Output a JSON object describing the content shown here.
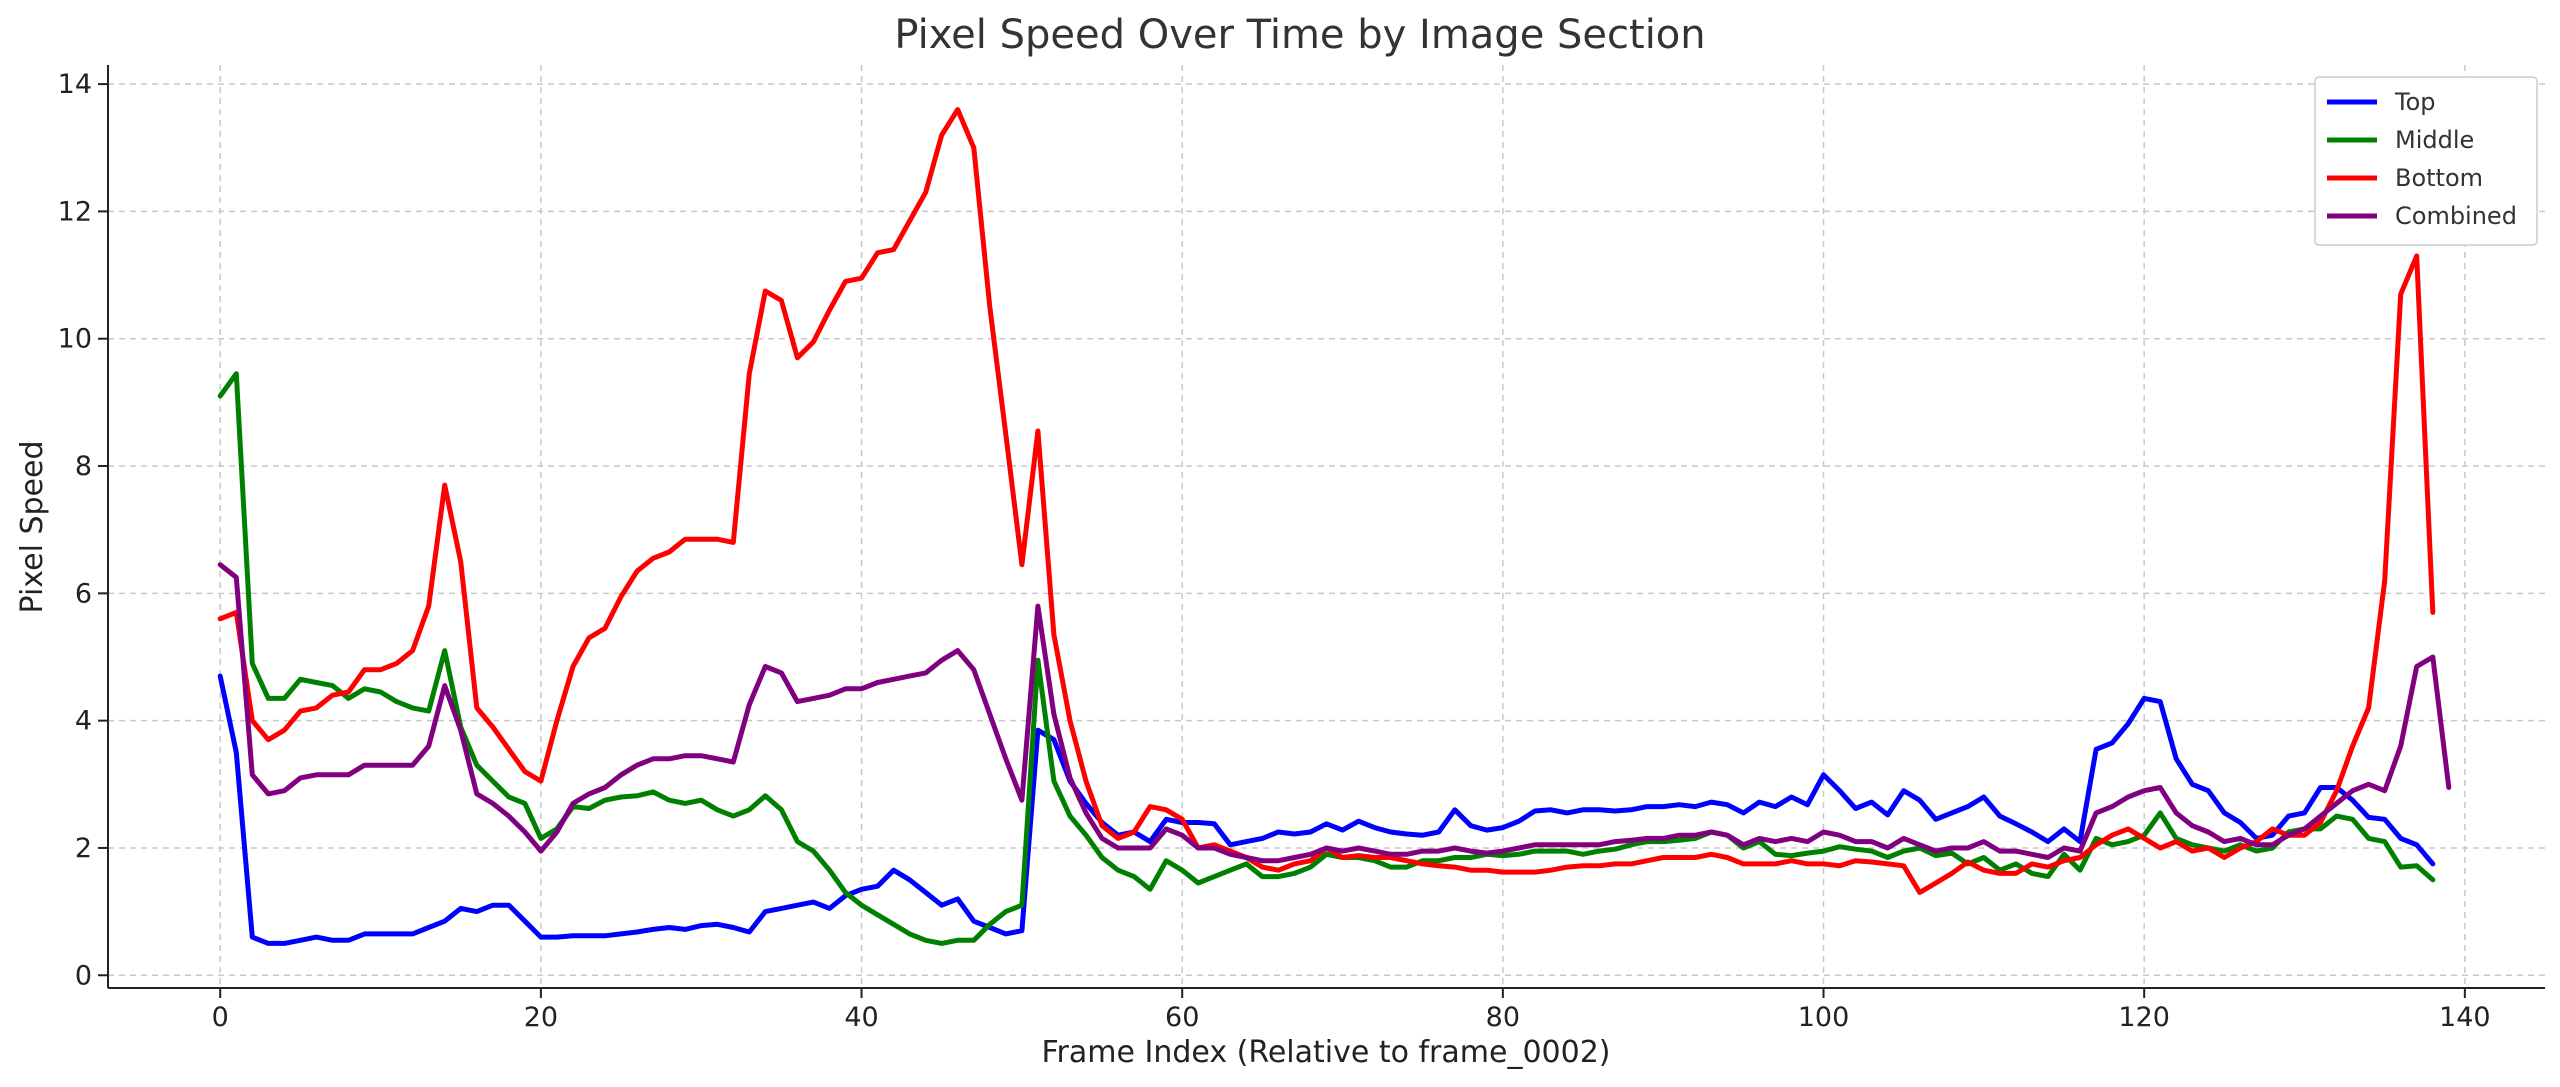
{
  "chart_data": {
    "type": "line",
    "title": "Pixel Speed Over Time by Image Section",
    "xlabel": "Frame Index (Relative to frame_0002)",
    "ylabel": "Pixel Speed",
    "xlim": [
      -7,
      145
    ],
    "ylim": [
      -0.2,
      14.3
    ],
    "xticks": [
      0,
      20,
      40,
      60,
      80,
      100,
      120,
      140
    ],
    "yticks": [
      0,
      2,
      4,
      6,
      8,
      10,
      12,
      14
    ],
    "grid": true,
    "legend_position": "top-right",
    "series": [
      {
        "name": "Top",
        "color": "#0000ff",
        "values": [
          4.7,
          3.5,
          0.6,
          0.5,
          0.5,
          0.55,
          0.6,
          0.55,
          0.55,
          0.65,
          0.65,
          0.65,
          0.65,
          0.75,
          0.85,
          1.05,
          1.0,
          1.1,
          1.1,
          0.85,
          0.6,
          0.6,
          0.62,
          0.62,
          0.62,
          0.65,
          0.68,
          0.72,
          0.75,
          0.72,
          0.78,
          0.8,
          0.75,
          0.68,
          1.0,
          1.05,
          1.1,
          1.15,
          1.05,
          1.25,
          1.35,
          1.4,
          1.65,
          1.5,
          1.3,
          1.1,
          1.2,
          0.85,
          0.75,
          0.65,
          0.7,
          3.85,
          3.7,
          3.05,
          2.7,
          2.4,
          2.2,
          2.25,
          2.1,
          2.45,
          2.4,
          2.4,
          2.38,
          2.05,
          2.1,
          2.15,
          2.25,
          2.22,
          2.25,
          2.38,
          2.28,
          2.42,
          2.32,
          2.25,
          2.22,
          2.2,
          2.25,
          2.6,
          2.35,
          2.28,
          2.32,
          2.42,
          2.58,
          2.6,
          2.55,
          2.6,
          2.6,
          2.58,
          2.6,
          2.65,
          2.65,
          2.68,
          2.65,
          2.72,
          2.68,
          2.55,
          2.72,
          2.65,
          2.8,
          2.68,
          3.15,
          2.9,
          2.62,
          2.72,
          2.52,
          2.9,
          2.75,
          2.45,
          2.55,
          2.65,
          2.8,
          2.5,
          2.38,
          2.25,
          2.1,
          2.3,
          2.1,
          3.55,
          3.65,
          3.95,
          4.35,
          4.3,
          3.4,
          3.0,
          2.9,
          2.55,
          2.4,
          2.15,
          2.2,
          2.5,
          2.55,
          2.95,
          2.95,
          2.75,
          2.48,
          2.45,
          2.15,
          2.05,
          1.75
        ]
      },
      {
        "name": "Middle",
        "color": "#008000",
        "values": [
          9.1,
          9.45,
          4.9,
          4.35,
          4.35,
          4.65,
          4.6,
          4.55,
          4.35,
          4.5,
          4.45,
          4.3,
          4.2,
          4.15,
          5.1,
          3.9,
          3.3,
          3.05,
          2.8,
          2.7,
          2.15,
          2.3,
          2.65,
          2.62,
          2.75,
          2.8,
          2.82,
          2.88,
          2.75,
          2.7,
          2.75,
          2.6,
          2.5,
          2.6,
          2.82,
          2.6,
          2.1,
          1.95,
          1.65,
          1.3,
          1.1,
          0.95,
          0.8,
          0.65,
          0.55,
          0.5,
          0.55,
          0.55,
          0.8,
          1.0,
          1.1,
          4.95,
          3.05,
          2.5,
          2.2,
          1.85,
          1.65,
          1.55,
          1.35,
          1.8,
          1.65,
          1.45,
          1.55,
          1.65,
          1.75,
          1.55,
          1.55,
          1.6,
          1.7,
          1.9,
          1.85,
          1.85,
          1.8,
          1.7,
          1.7,
          1.8,
          1.8,
          1.85,
          1.85,
          1.9,
          1.88,
          1.9,
          1.95,
          1.95,
          1.95,
          1.9,
          1.95,
          1.98,
          2.05,
          2.1,
          2.1,
          2.12,
          2.15,
          2.25,
          2.2,
          2.0,
          2.1,
          1.9,
          1.88,
          1.92,
          1.95,
          2.02,
          1.98,
          1.95,
          1.85,
          1.95,
          2.0,
          1.88,
          1.92,
          1.75,
          1.85,
          1.65,
          1.75,
          1.6,
          1.55,
          1.9,
          1.65,
          2.15,
          2.05,
          2.1,
          2.2,
          2.55,
          2.15,
          2.05,
          2.0,
          1.95,
          2.05,
          1.95,
          2.0,
          2.25,
          2.3,
          2.3,
          2.5,
          2.45,
          2.15,
          2.1,
          1.7,
          1.72,
          1.5
        ]
      },
      {
        "name": "Bottom",
        "color": "#ff0000",
        "values": [
          5.6,
          5.7,
          4.0,
          3.7,
          3.85,
          4.15,
          4.2,
          4.4,
          4.45,
          4.8,
          4.8,
          4.9,
          5.1,
          5.8,
          7.7,
          6.5,
          4.2,
          3.9,
          3.55,
          3.2,
          3.05,
          4.0,
          4.85,
          5.3,
          5.45,
          5.95,
          6.35,
          6.55,
          6.65,
          6.85,
          6.85,
          6.85,
          6.8,
          9.45,
          10.75,
          10.6,
          9.7,
          9.95,
          10.45,
          10.9,
          10.95,
          11.35,
          11.4,
          11.85,
          12.3,
          13.2,
          13.6,
          13.0,
          10.5,
          8.5,
          6.45,
          8.55,
          5.35,
          4.0,
          3.05,
          2.35,
          2.15,
          2.25,
          2.65,
          2.6,
          2.45,
          2.0,
          2.05,
          1.95,
          1.85,
          1.7,
          1.65,
          1.75,
          1.8,
          2.0,
          1.85,
          1.88,
          1.85,
          1.85,
          1.8,
          1.75,
          1.72,
          1.7,
          1.65,
          1.65,
          1.62,
          1.62,
          1.62,
          1.65,
          1.7,
          1.72,
          1.72,
          1.75,
          1.75,
          1.8,
          1.85,
          1.85,
          1.85,
          1.9,
          1.85,
          1.75,
          1.75,
          1.75,
          1.8,
          1.75,
          1.75,
          1.72,
          1.8,
          1.78,
          1.75,
          1.72,
          1.3,
          1.45,
          1.6,
          1.78,
          1.65,
          1.6,
          1.6,
          1.75,
          1.7,
          1.8,
          1.85,
          2.05,
          2.2,
          2.3,
          2.15,
          2.0,
          2.1,
          1.95,
          2.0,
          1.85,
          2.0,
          2.1,
          2.3,
          2.2,
          2.2,
          2.4,
          2.9,
          3.6,
          4.2,
          6.2,
          10.7,
          11.3,
          5.7
        ]
      },
      {
        "name": "Combined",
        "color": "#800080",
        "values": [
          6.45,
          6.25,
          3.15,
          2.85,
          2.9,
          3.1,
          3.15,
          3.15,
          3.15,
          3.3,
          3.3,
          3.3,
          3.3,
          3.6,
          4.55,
          3.85,
          2.85,
          2.7,
          2.5,
          2.25,
          1.95,
          2.25,
          2.7,
          2.85,
          2.95,
          3.15,
          3.3,
          3.4,
          3.4,
          3.45,
          3.45,
          3.4,
          3.35,
          4.25,
          4.85,
          4.75,
          4.3,
          4.35,
          4.4,
          4.5,
          4.5,
          4.6,
          4.65,
          4.7,
          4.75,
          4.95,
          5.1,
          4.8,
          4.1,
          3.4,
          2.75,
          5.8,
          4.1,
          3.1,
          2.55,
          2.15,
          2.0,
          2.0,
          2.0,
          2.3,
          2.2,
          2.0,
          2.0,
          1.9,
          1.85,
          1.8,
          1.8,
          1.85,
          1.9,
          2.0,
          1.95,
          2.0,
          1.95,
          1.9,
          1.9,
          1.95,
          1.95,
          2.0,
          1.95,
          1.92,
          1.95,
          2.0,
          2.05,
          2.05,
          2.05,
          2.05,
          2.05,
          2.1,
          2.12,
          2.15,
          2.15,
          2.2,
          2.2,
          2.25,
          2.2,
          2.05,
          2.15,
          2.1,
          2.15,
          2.1,
          2.25,
          2.2,
          2.1,
          2.1,
          2.0,
          2.15,
          2.05,
          1.95,
          2.0,
          2.0,
          2.1,
          1.95,
          1.95,
          1.9,
          1.85,
          2.0,
          1.95,
          2.55,
          2.65,
          2.8,
          2.9,
          2.95,
          2.55,
          2.35,
          2.25,
          2.1,
          2.15,
          2.05,
          2.05,
          2.2,
          2.3,
          2.5,
          2.7,
          2.9,
          3.0,
          2.9,
          3.6,
          4.85,
          5.0,
          2.95
        ]
      }
    ]
  }
}
